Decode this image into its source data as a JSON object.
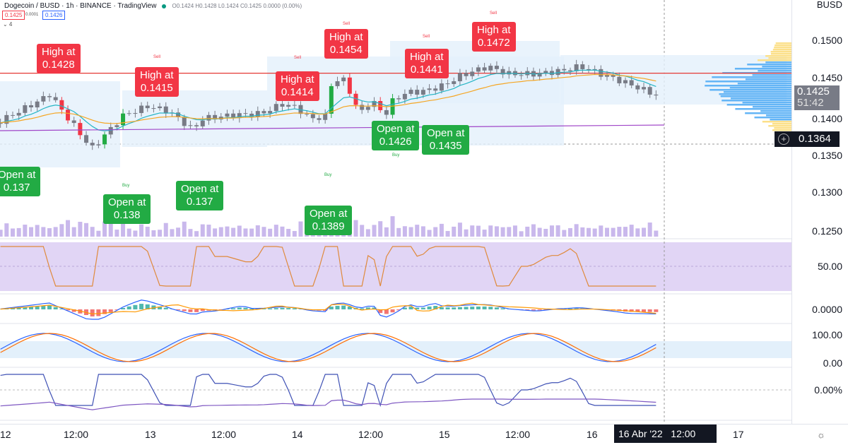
{
  "header": {
    "symbol": "Dogecoin / BUSD · 1h · BINANCE · TradingView",
    "ohlc": "O0.1424 H0.1428 L0.1424 C0.1425 0.0000 (0.00%)",
    "bid": "0.1425",
    "spread": "0.0001",
    "ask": "0.1426",
    "collapse": "⌄ 4"
  },
  "price_axis": {
    "currency": "BUSD",
    "ticks": [
      "0.1500",
      "0.1450",
      "0.1400",
      "0.1350",
      "0.1300",
      "0.1250"
    ],
    "last_price": "0.1425",
    "countdown": "51:42",
    "crosshair_price": "0.1364"
  },
  "panes": {
    "rsi": "50.00",
    "macd": "0.0000",
    "stoch_top": "100.00",
    "stoch_bottom": "0.00",
    "pct": "0.00%"
  },
  "time_axis": {
    "labels": [
      "12",
      "12:00",
      "13",
      "12:00",
      "14",
      "12:00",
      "15",
      "12:00",
      "16",
      "17"
    ],
    "crosshair": "16 Abr '22   12:00"
  },
  "annotations": {
    "high": [
      {
        "t": "High at",
        "v": "0.1428"
      },
      {
        "t": "High at",
        "v": "0.1415"
      },
      {
        "t": "High at",
        "v": "0.1414"
      },
      {
        "t": "High at",
        "v": "0.1454"
      },
      {
        "t": "High at",
        "v": "0.1441"
      },
      {
        "t": "High at",
        "v": "0.1472"
      }
    ],
    "open": [
      {
        "t": "Open at",
        "v": "0.137"
      },
      {
        "t": "Open at",
        "v": "0.138"
      },
      {
        "t": "Open at",
        "v": "0.137"
      },
      {
        "t": "Open at",
        "v": "0.1389"
      },
      {
        "t": "Open at",
        "v": "0.1426"
      },
      {
        "t": "Open at",
        "v": "0.1435"
      }
    ],
    "sell": "Sell",
    "buy": "Buy"
  },
  "chart_data": {
    "type": "candlestick",
    "interval_hours": 1,
    "anchors_hour_price": [
      [
        -1,
        0.139
      ],
      [
        6,
        0.142
      ],
      [
        7.5,
        0.1428
      ],
      [
        14.4,
        0.1355
      ],
      [
        19.6,
        0.14
      ],
      [
        23.6,
        0.1412
      ],
      [
        27,
        0.1405
      ],
      [
        31,
        0.138
      ],
      [
        32.3,
        0.1395
      ],
      [
        37.5,
        0.14
      ],
      [
        42,
        0.1402
      ],
      [
        45.6,
        0.1415
      ],
      [
        47.9,
        0.141
      ],
      [
        50,
        0.1395
      ],
      [
        52.5,
        0.1398
      ],
      [
        53.6,
        0.1445
      ],
      [
        55.4,
        0.1448
      ],
      [
        57,
        0.1425
      ],
      [
        58,
        0.14
      ],
      [
        60,
        0.142
      ],
      [
        62.3,
        0.14
      ],
      [
        63.4,
        0.1418
      ],
      [
        65.7,
        0.143
      ],
      [
        68.6,
        0.1432
      ],
      [
        72,
        0.144
      ],
      [
        74.4,
        0.1452
      ],
      [
        77.9,
        0.1462
      ],
      [
        79,
        0.1465
      ],
      [
        82.5,
        0.1455
      ],
      [
        87,
        0.1455
      ],
      [
        91.7,
        0.146
      ],
      [
        94,
        0.1465
      ],
      [
        97.5,
        0.1455
      ],
      [
        101,
        0.1445
      ],
      [
        103.2,
        0.1438
      ],
      [
        107,
        0.1425
      ]
    ],
    "resistance": 0.1456,
    "colors": {
      "candle": "#787b86",
      "up": "#22ab44",
      "down": "#f23645",
      "ma_fast": "#26b5c4",
      "ma_slow": "#f5a623",
      "ma_long": "#a046c8"
    }
  }
}
